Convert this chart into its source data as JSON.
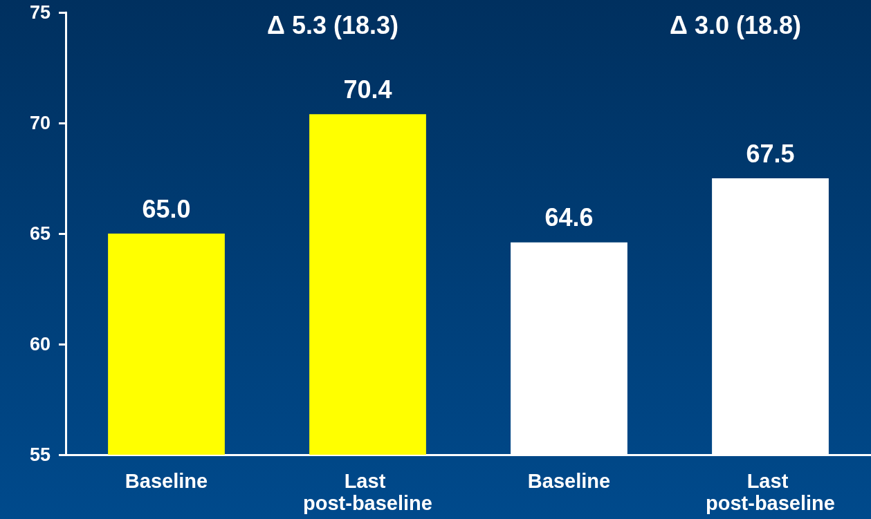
{
  "chart_data": {
    "type": "bar",
    "categories": [
      "Baseline",
      "Last post-baseline",
      "Baseline",
      "Last post-baseline"
    ],
    "values": [
      65.0,
      70.4,
      64.6,
      67.5
    ],
    "colors": [
      "#ffff00",
      "#ffff00",
      "#ffffff",
      "#ffffff"
    ],
    "value_labels": [
      "65.0",
      "70.4",
      "64.6",
      "67.5"
    ],
    "ylim": [
      55,
      75
    ],
    "yticks": [
      55,
      60,
      65,
      70,
      75
    ],
    "grid": false,
    "annotations": [
      "Δ 5.3 (18.3)",
      "Δ 3.0 (18.8)"
    ]
  }
}
